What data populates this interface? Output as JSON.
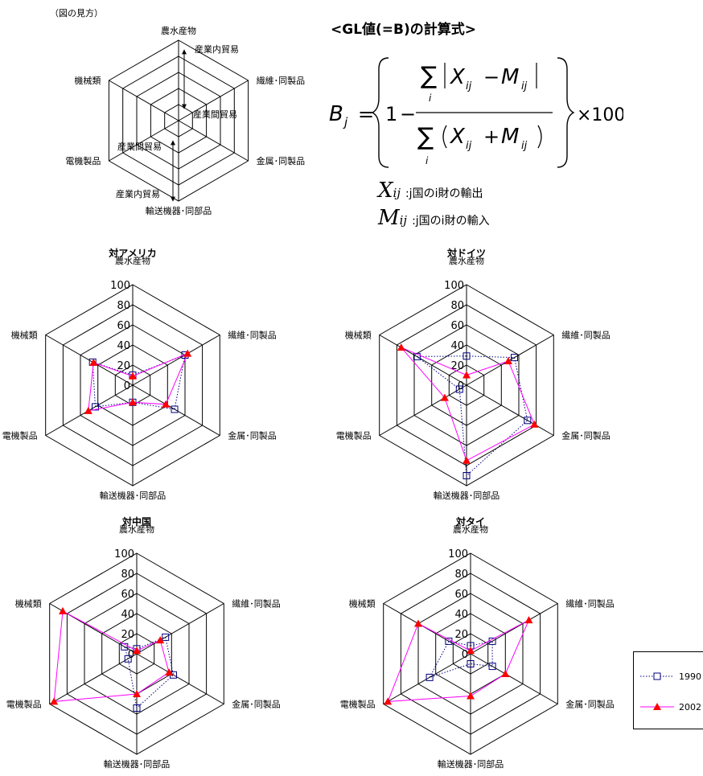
{
  "guide": {
    "caption": "（図の見方）",
    "axes": [
      "農水産物",
      "繊維･同製品",
      "金属･同製品",
      "輸送機器･同部品",
      "電機製品",
      "機械類"
    ],
    "notes": {
      "upper_outer": "産業内貿易",
      "upper_inner": "産業間貿易",
      "lower_inner": "産業間貿易",
      "lower_outer": "産業内貿易"
    }
  },
  "formula": {
    "title": "<GL値(=B)の計算式>",
    "lhs": "B",
    "lhs_sub": "j",
    "one": "1",
    "minus": "−",
    "sum": "∑",
    "sum_index": "i",
    "numerator_inner": "X",
    "numerator_inner2": "M",
    "sub_ij": "ij",
    "plus": "+",
    "times": "×100",
    "equals": "=",
    "vars": [
      {
        "symbol": "X",
        "sub": "ij",
        "desc": ":j国のi財の輸出"
      },
      {
        "symbol": "M",
        "sub": "ij",
        "desc": ":j国のi財の輸入"
      }
    ]
  },
  "legend": {
    "items": [
      {
        "label": "1990",
        "color": "#000080",
        "marker": "square-open",
        "line": "dotted"
      },
      {
        "label": "2002",
        "color": "#ff0000",
        "line_color": "#ff00ff",
        "marker": "triangle-filled",
        "line": "solid"
      }
    ]
  },
  "chart_data": [
    {
      "type": "radar",
      "title": "対アメリカ",
      "axes": [
        "農水産物",
        "繊維･同製品",
        "金属･同製品",
        "輸送機器･同部品",
        "電機製品",
        "機械類"
      ],
      "ticks": [
        0,
        20,
        40,
        60,
        80,
        100
      ],
      "range": [
        0,
        100
      ],
      "series": [
        {
          "name": "1990",
          "values": [
            10,
            60,
            48,
            17,
            43,
            46
          ]
        },
        {
          "name": "2002",
          "values": [
            9,
            63,
            38,
            17,
            51,
            45
          ]
        }
      ]
    },
    {
      "type": "radar",
      "title": "対ドイツ",
      "axes": [
        "農水産物",
        "繊維･同製品",
        "金属･同製品",
        "輸送機器･同部品",
        "電機製品",
        "機械類"
      ],
      "ticks": [
        0,
        20,
        40,
        60,
        80,
        100
      ],
      "range": [
        0,
        100
      ],
      "series": [
        {
          "name": "1990",
          "values": [
            29,
            55,
            70,
            90,
            8,
            57
          ]
        },
        {
          "name": "2002",
          "values": [
            10,
            48,
            78,
            75,
            25,
            75
          ]
        }
      ]
    },
    {
      "type": "radar",
      "title": "対中国",
      "axes": [
        "農水産物",
        "繊維･同製品",
        "金属･同製品",
        "輸送機器･同部品",
        "電機製品",
        "機械類"
      ],
      "ticks": [
        0,
        20,
        40,
        60,
        80,
        100
      ],
      "range": [
        0,
        100
      ],
      "series": [
        {
          "name": "1990",
          "values": [
            5,
            33,
            42,
            54,
            10,
            14
          ]
        },
        {
          "name": "2002",
          "values": [
            3,
            27,
            37,
            40,
            95,
            85
          ]
        }
      ]
    },
    {
      "type": "radar",
      "title": "対タイ",
      "axes": [
        "農水産物",
        "繊維･同製品",
        "金属･同製品",
        "輸送機器･同部品",
        "電機製品",
        "機械類"
      ],
      "ticks": [
        0,
        20,
        40,
        60,
        80,
        100
      ],
      "range": [
        0,
        100
      ],
      "series": [
        {
          "name": "1990",
          "values": [
            8,
            25,
            25,
            10,
            47,
            25
          ]
        },
        {
          "name": "2002",
          "values": [
            3,
            67,
            40,
            42,
            95,
            60
          ]
        }
      ]
    }
  ]
}
